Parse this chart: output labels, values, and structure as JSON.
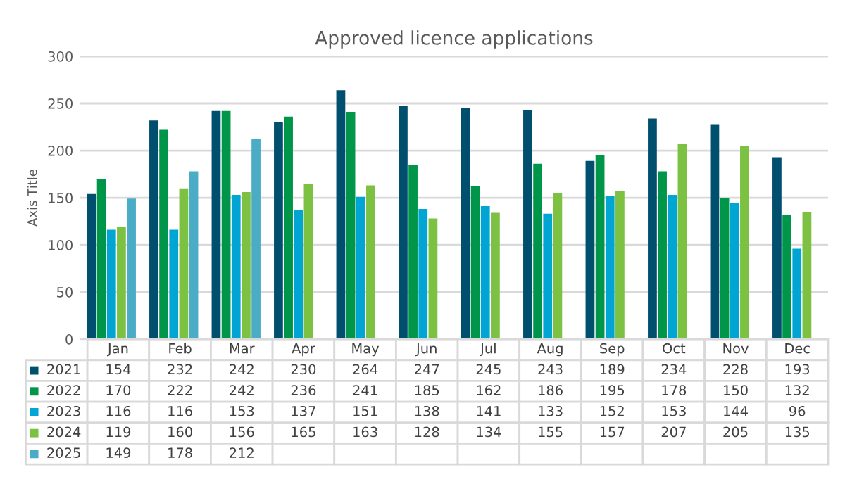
{
  "chart_data": {
    "type": "bar",
    "title": "Approved licence applications",
    "ylabel": "Axis Title",
    "categories": [
      "Jan",
      "Feb",
      "Mar",
      "Apr",
      "May",
      "Jun",
      "Jul",
      "Aug",
      "Sep",
      "Oct",
      "Nov",
      "Dec"
    ],
    "series": [
      {
        "name": "2021",
        "color": "#004f6e",
        "values": [
          154,
          232,
          242,
          230,
          264,
          247,
          245,
          243,
          189,
          234,
          228,
          193
        ]
      },
      {
        "name": "2022",
        "color": "#00964a",
        "values": [
          170,
          222,
          242,
          236,
          241,
          185,
          162,
          186,
          195,
          178,
          150,
          132
        ]
      },
      {
        "name": "2023",
        "color": "#00a5d4",
        "values": [
          116,
          116,
          153,
          137,
          151,
          138,
          141,
          133,
          152,
          153,
          144,
          96
        ]
      },
      {
        "name": "2024",
        "color": "#7dc142",
        "values": [
          119,
          160,
          156,
          165,
          163,
          128,
          134,
          155,
          157,
          207,
          205,
          135
        ]
      },
      {
        "name": "2025",
        "color": "#4bacc6",
        "values": [
          149,
          178,
          212,
          null,
          null,
          null,
          null,
          null,
          null,
          null,
          null,
          null
        ]
      }
    ],
    "ylim": [
      0,
      300
    ],
    "yticks": [
      0,
      50,
      100,
      150,
      200,
      250,
      300
    ],
    "grid": "y",
    "legend": "bottom",
    "data_labels": true,
    "tick_labels": "y"
  }
}
